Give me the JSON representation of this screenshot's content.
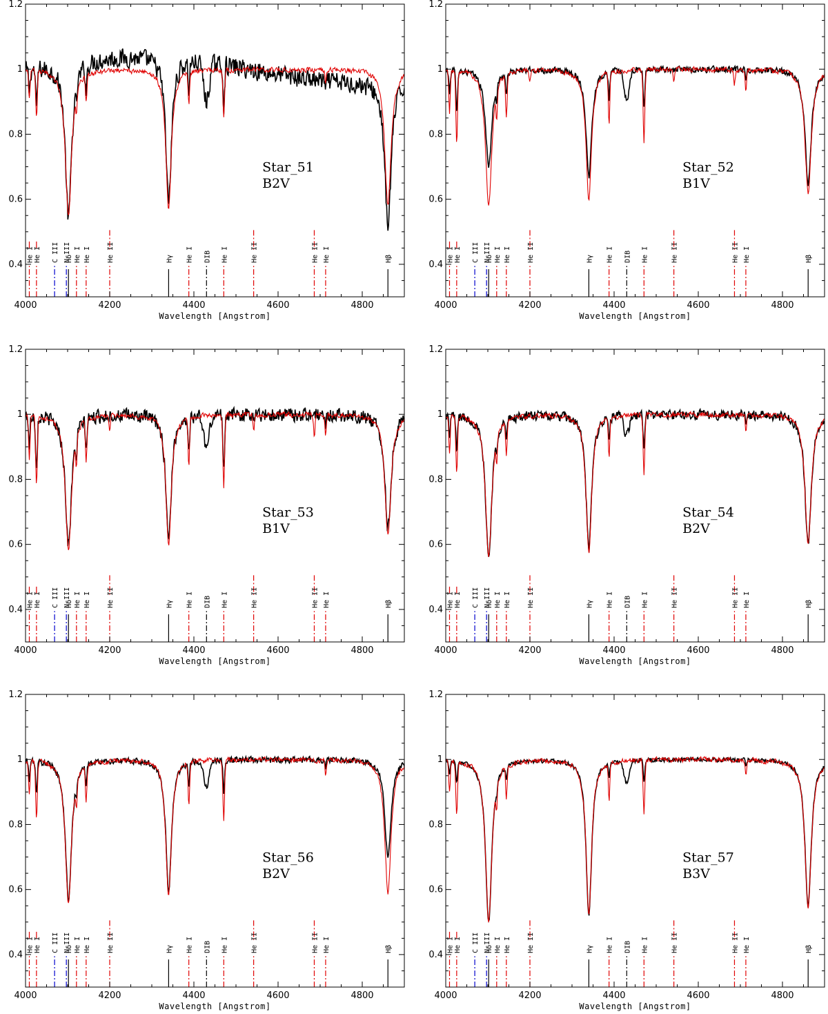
{
  "chart_data": {
    "type": "line",
    "xlabel": "Wavelength [Angstrom]",
    "xlim": [
      4000,
      4900
    ],
    "ylim": [
      0.3,
      1.2
    ],
    "xticks": [
      4000,
      4200,
      4400,
      4600,
      4800
    ],
    "yticks": [
      0.4,
      0.6,
      0.8,
      1,
      1.2
    ],
    "grid": false,
    "line_markers": [
      {
        "label": "He I",
        "wavelength": 4009,
        "color": "#e00000",
        "style": "dashdot"
      },
      {
        "label": "He I",
        "wavelength": 4026,
        "color": "#e00000",
        "style": "dashdot"
      },
      {
        "label": "C III",
        "wavelength": 4069,
        "color": "#0000cc",
        "style": "dashdot"
      },
      {
        "label": "N III",
        "wavelength": 4097,
        "color": "#0000cc",
        "style": "dashdot"
      },
      {
        "label": "Hδ",
        "wavelength": 4102,
        "color": "#000000",
        "style": "solid"
      },
      {
        "label": "He I",
        "wavelength": 4121,
        "color": "#e00000",
        "style": "dashdot"
      },
      {
        "label": "He I",
        "wavelength": 4144,
        "color": "#e00000",
        "style": "dashdot"
      },
      {
        "label": "He II",
        "wavelength": 4200,
        "color": "#e00000",
        "style": "dashdot"
      },
      {
        "label": "Hγ",
        "wavelength": 4340,
        "color": "#000000",
        "style": "solid"
      },
      {
        "label": "He I",
        "wavelength": 4388,
        "color": "#e00000",
        "style": "dashdot"
      },
      {
        "label": "DIB",
        "wavelength": 4430,
        "color": "#000000",
        "style": "dashdot"
      },
      {
        "label": "He I",
        "wavelength": 4471,
        "color": "#e00000",
        "style": "dashdot"
      },
      {
        "label": "He II",
        "wavelength": 4542,
        "color": "#e00000",
        "style": "dashdot"
      },
      {
        "label": "He II",
        "wavelength": 4686,
        "color": "#e00000",
        "style": "dashdot"
      },
      {
        "label": "He I",
        "wavelength": 4713,
        "color": "#e00000",
        "style": "dashdot"
      },
      {
        "label": "Hβ",
        "wavelength": 4861,
        "color": "#000000",
        "style": "solid"
      }
    ],
    "panels": [
      {
        "star": "Star_51",
        "spectral_type": "B2V",
        "noise": 0.035,
        "dib": 0.12,
        "cont_slope": 0.05,
        "obs_depths": {
          "H": [
            0.48,
            0.45,
            0.45
          ],
          "HeI": 0.12,
          "HeII": 0.0
        },
        "model_depths": {
          "H": [
            0.45,
            0.43,
            0.42
          ],
          "HeI": 0.14,
          "HeII": 0.0
        },
        "series": [
          {
            "color": "#000000",
            "role": "observed",
            "x": [
              4000,
              4010,
              4026,
              4050,
              4070,
              4085,
              4095,
              4102,
              4110,
              4121,
              4144,
              4180,
              4200,
              4240,
              4300,
              4320,
              4340,
              4360,
              4388,
              4430,
              4471,
              4500,
              4542,
              4600,
              4650,
              4700,
              4713,
              4800,
              4840,
              4861,
              4880,
              4900
            ],
            "y": [
              1.0,
              0.92,
              0.95,
              0.98,
              0.85,
              0.76,
              0.6,
              0.47,
              0.75,
              0.9,
              0.92,
              0.98,
              1.0,
              1.08,
              1.02,
              0.95,
              0.55,
              0.98,
              1.0,
              0.9,
              0.9,
              1.0,
              1.04,
              1.05,
              1.07,
              1.05,
              1.04,
              1.04,
              0.98,
              0.55,
              0.95,
              0.97
            ]
          },
          {
            "color": "#e00000",
            "role": "model",
            "x": [
              4000,
              4009,
              4026,
              4050,
              4080,
              4102,
              4121,
              4144,
              4200,
              4300,
              4320,
              4340,
              4360,
              4388,
              4430,
              4471,
              4542,
              4600,
              4686,
              4713,
              4800,
              4840,
              4861,
              4880,
              4900
            ],
            "y": [
              1.0,
              0.9,
              0.8,
              1.01,
              0.9,
              0.6,
              0.88,
              0.9,
              1.0,
              1.0,
              0.95,
              0.57,
              1.0,
              0.9,
              1.0,
              0.87,
              0.97,
              0.99,
              0.97,
              0.96,
              0.99,
              0.95,
              0.57,
              0.95,
              0.98
            ]
          }
        ]
      },
      {
        "star": "Star_52",
        "spectral_type": "B1V",
        "noise": 0.012,
        "dib": 0.09,
        "cont_slope": 0.0,
        "obs_depths": {
          "H": [
            0.3,
            0.33,
            0.35
          ],
          "HeI": 0.12,
          "HeII": 0.0
        },
        "model_depths": {
          "H": [
            0.42,
            0.4,
            0.38
          ],
          "HeI": 0.22,
          "HeII": 0.05
        },
        "series": [
          {
            "color": "#000000",
            "role": "observed",
            "x": [
              4000,
              4026,
              4060,
              4102,
              4121,
              4144,
              4200,
              4300,
              4340,
              4388,
              4430,
              4471,
              4542,
              4600,
              4686,
              4713,
              4800,
              4861,
              4900
            ],
            "y": [
              1.0,
              0.9,
              0.98,
              0.7,
              0.92,
              0.92,
              0.99,
              1.0,
              0.67,
              0.95,
              0.91,
              0.87,
              0.99,
              0.99,
              0.9,
              0.98,
              1.0,
              0.66,
              1.0
            ]
          },
          {
            "color": "#e00000",
            "role": "model",
            "x": [
              4000,
              4009,
              4026,
              4060,
              4102,
              4121,
              4144,
              4200,
              4300,
              4340,
              4388,
              4471,
              4542,
              4600,
              4686,
              4713,
              4800,
              4861,
              4900
            ],
            "y": [
              1.0,
              0.88,
              0.76,
              0.98,
              0.59,
              0.88,
              0.88,
              0.95,
              0.98,
              0.6,
              0.86,
              0.77,
              0.95,
              0.98,
              0.95,
              0.95,
              0.98,
              0.63,
              0.99
            ]
          }
        ]
      },
      {
        "star": "Star_53",
        "spectral_type": "B1V",
        "noise": 0.025,
        "dib": 0.1,
        "cont_slope": 0.0,
        "obs_depths": {
          "H": [
            0.4,
            0.38,
            0.35
          ],
          "HeI": 0.16,
          "HeII": 0.0
        },
        "model_depths": {
          "H": [
            0.42,
            0.4,
            0.37
          ],
          "HeI": 0.22,
          "HeII": 0.07
        },
        "series": [
          {
            "color": "#000000",
            "role": "observed",
            "x": [
              4000,
              4026,
              4060,
              4080,
              4102,
              4121,
              4144,
              4200,
              4300,
              4340,
              4388,
              4430,
              4471,
              4542,
              4600,
              4686,
              4713,
              4800,
              4861,
              4900
            ],
            "y": [
              1.0,
              0.8,
              0.9,
              0.95,
              0.6,
              0.92,
              0.9,
              1.02,
              1.0,
              0.64,
              0.82,
              0.9,
              0.84,
              1.0,
              0.99,
              0.99,
              0.98,
              1.03,
              0.64,
              0.98
            ]
          },
          {
            "color": "#e00000",
            "role": "model",
            "x": [
              4000,
              4009,
              4026,
              4060,
              4102,
              4121,
              4144,
              4200,
              4300,
              4340,
              4388,
              4471,
              4542,
              4600,
              4686,
              4713,
              4800,
              4861,
              4900
            ],
            "y": [
              1.0,
              0.88,
              0.76,
              0.99,
              0.59,
              0.88,
              0.88,
              0.95,
              0.98,
              0.6,
              0.88,
              0.77,
              0.95,
              0.98,
              0.93,
              0.92,
              0.98,
              0.63,
              0.99
            ]
          }
        ]
      },
      {
        "star": "Star_54",
        "spectral_type": "B2V",
        "noise": 0.018,
        "dib": 0.06,
        "cont_slope": 0.0,
        "obs_depths": {
          "H": [
            0.44,
            0.42,
            0.4
          ],
          "HeI": 0.1,
          "HeII": 0.0
        },
        "model_depths": {
          "H": [
            0.44,
            0.42,
            0.4
          ],
          "HeI": 0.18,
          "HeII": 0.0
        },
        "series": [
          {
            "color": "#000000",
            "role": "observed",
            "x": [
              4000,
              4026,
              4060,
              4102,
              4121,
              4144,
              4200,
              4300,
              4340,
              4388,
              4430,
              4471,
              4542,
              4600,
              4686,
              4713,
              4800,
              4861,
              4900
            ],
            "y": [
              1.0,
              0.96,
              1.04,
              0.56,
              0.97,
              0.96,
              1.0,
              1.0,
              0.58,
              0.93,
              0.98,
              0.97,
              1.0,
              0.99,
              1.0,
              0.99,
              1.01,
              0.59,
              0.98
            ]
          },
          {
            "color": "#e00000",
            "role": "model",
            "x": [
              4000,
              4009,
              4026,
              4060,
              4102,
              4121,
              4144,
              4200,
              4300,
              4340,
              4388,
              4471,
              4542,
              4600,
              4686,
              4713,
              4800,
              4861,
              4900
            ],
            "y": [
              1.0,
              0.89,
              0.79,
              0.99,
              0.57,
              0.9,
              0.88,
              0.99,
              0.99,
              0.58,
              0.89,
              0.82,
              0.99,
              0.98,
              0.98,
              0.96,
              0.98,
              0.59,
              0.99
            ]
          }
        ]
      },
      {
        "star": "Star_56",
        "spectral_type": "B2V",
        "noise": 0.012,
        "dib": 0.08,
        "cont_slope": 0.0,
        "obs_depths": {
          "H": [
            0.43,
            0.41,
            0.3
          ],
          "HeI": 0.1,
          "HeII": 0.0
        },
        "model_depths": {
          "H": [
            0.44,
            0.42,
            0.41
          ],
          "HeI": 0.18,
          "HeII": 0.0
        },
        "series": [
          {
            "color": "#000000",
            "role": "observed",
            "x": [
              4000,
              4026,
              4060,
              4102,
              4121,
              4144,
              4200,
              4300,
              4340,
              4388,
              4430,
              4471,
              4542,
              4600,
              4686,
              4713,
              4800,
              4861,
              4900
            ],
            "y": [
              1.0,
              0.95,
              1.0,
              0.58,
              0.95,
              0.95,
              1.0,
              1.0,
              0.59,
              0.96,
              0.93,
              0.95,
              1.0,
              1.0,
              1.01,
              1.01,
              1.02,
              0.71,
              0.98
            ]
          },
          {
            "color": "#e00000",
            "role": "model",
            "x": [
              4000,
              4009,
              4026,
              4060,
              4102,
              4121,
              4144,
              4200,
              4300,
              4340,
              4388,
              4471,
              4542,
              4600,
              4686,
              4713,
              4800,
              4861,
              4900
            ],
            "y": [
              1.0,
              0.89,
              0.79,
              0.99,
              0.56,
              0.9,
              0.88,
              0.99,
              0.99,
              0.58,
              0.88,
              0.82,
              0.99,
              0.98,
              0.98,
              0.97,
              0.98,
              0.59,
              0.99
            ]
          }
        ]
      },
      {
        "star": "Star_57",
        "spectral_type": "B3V",
        "noise": 0.008,
        "dib": 0.07,
        "cont_slope": 0.0,
        "obs_depths": {
          "H": [
            0.5,
            0.48,
            0.45
          ],
          "HeI": 0.06,
          "HeII": 0.0
        },
        "model_depths": {
          "H": [
            0.5,
            0.48,
            0.46
          ],
          "HeI": 0.16,
          "HeII": 0.0
        },
        "series": [
          {
            "color": "#000000",
            "role": "observed",
            "x": [
              4000,
              4026,
              4060,
              4102,
              4121,
              4144,
              4200,
              4300,
              4340,
              4388,
              4430,
              4471,
              4542,
              4600,
              4686,
              4713,
              4800,
              4861,
              4900
            ],
            "y": [
              1.0,
              0.96,
              1.01,
              0.5,
              0.98,
              0.98,
              1.0,
              1.0,
              0.52,
              0.98,
              0.94,
              0.94,
              1.0,
              1.01,
              1.01,
              1.0,
              1.02,
              0.55,
              0.97
            ]
          },
          {
            "color": "#e00000",
            "role": "model",
            "x": [
              4000,
              4009,
              4026,
              4060,
              4102,
              4121,
              4144,
              4200,
              4300,
              4340,
              4388,
              4471,
              4542,
              4600,
              4686,
              4713,
              4800,
              4861,
              4900
            ],
            "y": [
              1.0,
              0.89,
              0.8,
              1.0,
              0.5,
              0.9,
              0.88,
              0.99,
              0.99,
              0.52,
              0.88,
              0.82,
              0.98,
              0.97,
              0.97,
              0.96,
              0.97,
              0.53,
              0.98
            ]
          }
        ]
      }
    ]
  }
}
